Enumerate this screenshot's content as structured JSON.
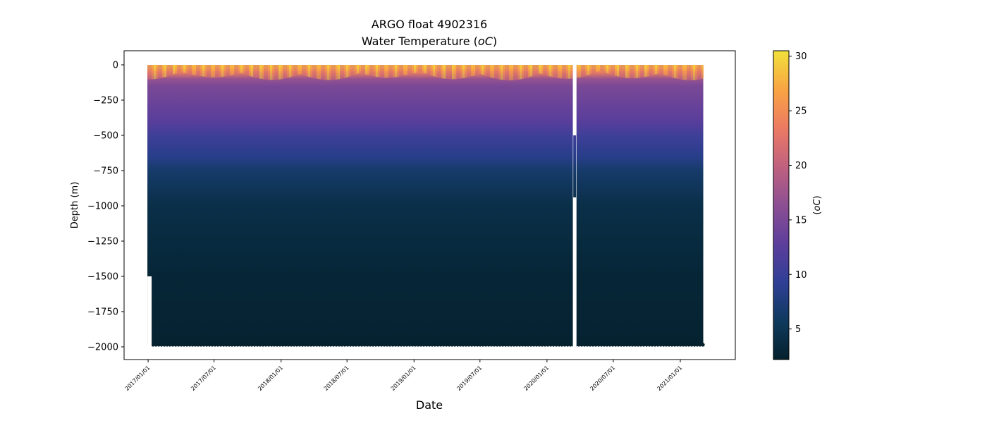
{
  "chart_data": {
    "type": "heatmap",
    "title": "ARGO float 4902316",
    "subtitle_prefix": "Water Temperature (",
    "subtitle_unit": "oC",
    "subtitle_suffix": ")",
    "xlabel": "Date",
    "ylabel": "Depth (m)",
    "x_ticks": [
      "2017/01/01",
      "2017/07/01",
      "2018/01/01",
      "2018/07/01",
      "2019/01/01",
      "2019/07/01",
      "2020/01/01",
      "2020/07/01",
      "2021/01/01"
    ],
    "y_ticks": [
      0,
      -250,
      -500,
      -750,
      -1000,
      -1250,
      -1500,
      -1750,
      -2000
    ],
    "y_tick_labels": [
      "0",
      "−250",
      "−500",
      "−750",
      "−1000",
      "−1250",
      "−1500",
      "−1750",
      "−2000"
    ],
    "xlim": [
      "2016/10/27",
      "2021/06/01"
    ],
    "ylim": [
      -2090,
      100
    ],
    "data_x_range": [
      "2016/12/30",
      "2021/03/05"
    ],
    "data_gap": [
      "2020/03/12",
      "2020/03/22"
    ],
    "gap_partial_depth": -940,
    "first_profile_max_depth": -1500,
    "typical_max_depth": -1985,
    "colorbar": {
      "label": "(oC)",
      "label_prefix": "(",
      "label_unit": "oC",
      "label_suffix": ")",
      "min": 2.2,
      "max": 30.5,
      "ticks": [
        5,
        10,
        15,
        20,
        25,
        30
      ],
      "colormap": "thermal",
      "color_stops": [
        "#04202c",
        "#0f3a5e",
        "#2f3f96",
        "#5d3e9c",
        "#8c4f93",
        "#c0617f",
        "#ec7a63",
        "#f9a443",
        "#f1e13b"
      ]
    },
    "temperature_profile": {
      "depth": [
        0,
        -20,
        -50,
        -100,
        -150,
        -250,
        -400,
        -500,
        -650,
        -750,
        -1000,
        -1500,
        -2000
      ],
      "temperature": [
        29.5,
        28.5,
        24,
        17,
        15,
        14,
        12.5,
        10.5,
        8.5,
        6.5,
        4.2,
        3.0,
        2.5
      ]
    }
  }
}
